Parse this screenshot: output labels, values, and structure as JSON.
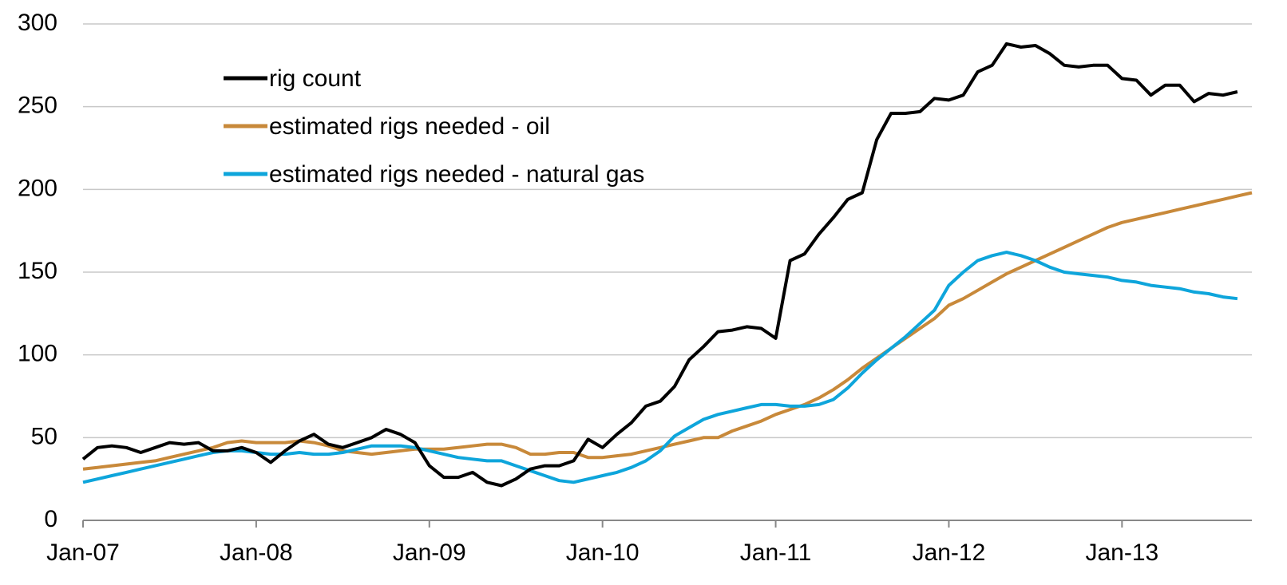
{
  "chart_data": {
    "type": "line",
    "categories": [
      "Jan-07",
      null,
      null,
      null,
      null,
      null,
      null,
      null,
      null,
      null,
      null,
      null,
      "Jan-08",
      null,
      null,
      null,
      null,
      null,
      null,
      null,
      null,
      null,
      null,
      null,
      "Jan-09",
      null,
      null,
      null,
      null,
      null,
      null,
      null,
      null,
      null,
      null,
      null,
      "Jan-10",
      null,
      null,
      null,
      null,
      null,
      null,
      null,
      null,
      null,
      null,
      null,
      "Jan-11",
      null,
      null,
      null,
      null,
      null,
      null,
      null,
      null,
      null,
      null,
      null,
      "Jan-12",
      null,
      null,
      null,
      null,
      null,
      null,
      null,
      null,
      null,
      null,
      null,
      "Jan-13",
      null,
      null,
      null,
      null,
      null,
      null,
      null,
      null,
      null
    ],
    "series": [
      {
        "name": "rig count",
        "color": "#000000",
        "values": [
          37,
          44,
          45,
          44,
          41,
          44,
          47,
          46,
          47,
          42,
          42,
          44,
          41,
          35,
          42,
          48,
          52,
          46,
          44,
          47,
          50,
          55,
          52,
          47,
          33,
          26,
          26,
          29,
          23,
          21,
          25,
          31,
          33,
          33,
          36,
          49,
          44,
          52,
          59,
          69,
          72,
          81,
          97,
          105,
          114,
          115,
          117,
          116,
          110,
          157,
          161,
          173,
          183,
          194,
          198,
          230,
          246,
          246,
          247,
          255,
          254,
          257,
          271,
          275,
          288,
          286,
          287,
          282,
          275,
          274,
          275,
          275,
          267,
          266,
          257,
          263,
          263,
          253,
          258,
          257,
          259,
          null
        ]
      },
      {
        "name": "estimated rigs needed - oil",
        "color": "#c8893a",
        "values": [
          31,
          32,
          33,
          34,
          35,
          36,
          38,
          40,
          42,
          44,
          47,
          48,
          47,
          47,
          47,
          48,
          47,
          45,
          42,
          41,
          40,
          41,
          42,
          43,
          43,
          43,
          44,
          45,
          46,
          46,
          44,
          40,
          40,
          41,
          41,
          38,
          38,
          39,
          40,
          42,
          44,
          46,
          48,
          50,
          50,
          54,
          57,
          60,
          64,
          67,
          70,
          74,
          79,
          85,
          92,
          98,
          104,
          110,
          116,
          122,
          130,
          134,
          139,
          144,
          149,
          153,
          157,
          161,
          165,
          169,
          173,
          177,
          180,
          182,
          184,
          186,
          188,
          190,
          192,
          194,
          196,
          198
        ]
      },
      {
        "name": "estimated rigs needed - natural gas",
        "color": "#0ea5db",
        "values": [
          23,
          25,
          27,
          29,
          31,
          33,
          35,
          37,
          39,
          41,
          42,
          42,
          41,
          40,
          40,
          41,
          40,
          40,
          41,
          43,
          45,
          45,
          45,
          44,
          42,
          40,
          38,
          37,
          36,
          36,
          33,
          30,
          27,
          24,
          23,
          25,
          27,
          29,
          32,
          36,
          42,
          51,
          56,
          61,
          64,
          66,
          68,
          70,
          70,
          69,
          69,
          70,
          73,
          80,
          89,
          97,
          104,
          111,
          119,
          127,
          142,
          150,
          157,
          160,
          162,
          160,
          157,
          153,
          150,
          149,
          148,
          147,
          145,
          144,
          142,
          141,
          140,
          138,
          137,
          135,
          134,
          null
        ]
      }
    ],
    "ylim": [
      0,
      300
    ],
    "yticks": [
      0,
      50,
      100,
      150,
      200,
      250,
      300
    ],
    "grid": true,
    "legend": "upper left"
  }
}
